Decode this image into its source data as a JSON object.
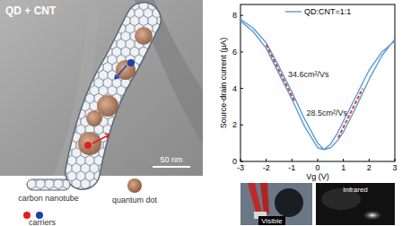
{
  "panels": {
    "tem": {
      "title": "QD + CNT",
      "scale_bar": "50 nm"
    },
    "legend": {
      "items": [
        "carbon nanotube",
        "quantum dot",
        "carriers"
      ]
    },
    "photos": [
      "Visible",
      "Infrared"
    ]
  },
  "chart_data": {
    "type": "line",
    "x_label": "Vg (V)",
    "y_label": "Source-drain current (μA)",
    "x": [
      -3,
      -2.5,
      -2,
      -1.5,
      -1,
      -0.5,
      0,
      0.25,
      0.5,
      0.75,
      1,
      1.5,
      2,
      2.5,
      3,
      3,
      2.5,
      2,
      1.5,
      1,
      0.75,
      0.5,
      0.25,
      0,
      -0.5,
      -1,
      -1.5,
      -2,
      -2.5,
      -3
    ],
    "series": [
      {
        "name": "QD:CNT=1:1",
        "color": "#5b9bd5",
        "values": [
          7.8,
          7.3,
          6.5,
          5.2,
          3.8,
          2.3,
          1.0,
          0.65,
          0.75,
          1.1,
          1.6,
          3.0,
          4.5,
          5.8,
          6.7,
          6.6,
          6.0,
          5.0,
          3.6,
          2.2,
          1.5,
          0.95,
          0.65,
          0.75,
          1.9,
          3.4,
          4.8,
          6.2,
          7.1,
          7.7
        ]
      }
    ],
    "xlim": [
      -3,
      3
    ],
    "xticks": [
      -3,
      -2,
      -1,
      0,
      1,
      2,
      3
    ],
    "ylim": [
      0,
      8.6
    ],
    "yticks": [
      0,
      2,
      4,
      6,
      8
    ],
    "legend": "top",
    "annotations": [
      {
        "text": "34.6cm²/Vs",
        "x": -1.15,
        "y": 4.6,
        "line": {
          "x": [
            -2.0,
            -0.9
          ],
          "y": [
            6.4,
            3.3
          ],
          "color": "#d9413b",
          "line_style": "dashed"
        }
      },
      {
        "text": "28.5cm²/Vs",
        "x": 1.15,
        "y": 2.5,
        "line": {
          "x": [
            0.8,
            1.75
          ],
          "y": [
            1.3,
            4.0
          ],
          "color": "#d9413b",
          "line_style": "dashed"
        }
      }
    ]
  }
}
